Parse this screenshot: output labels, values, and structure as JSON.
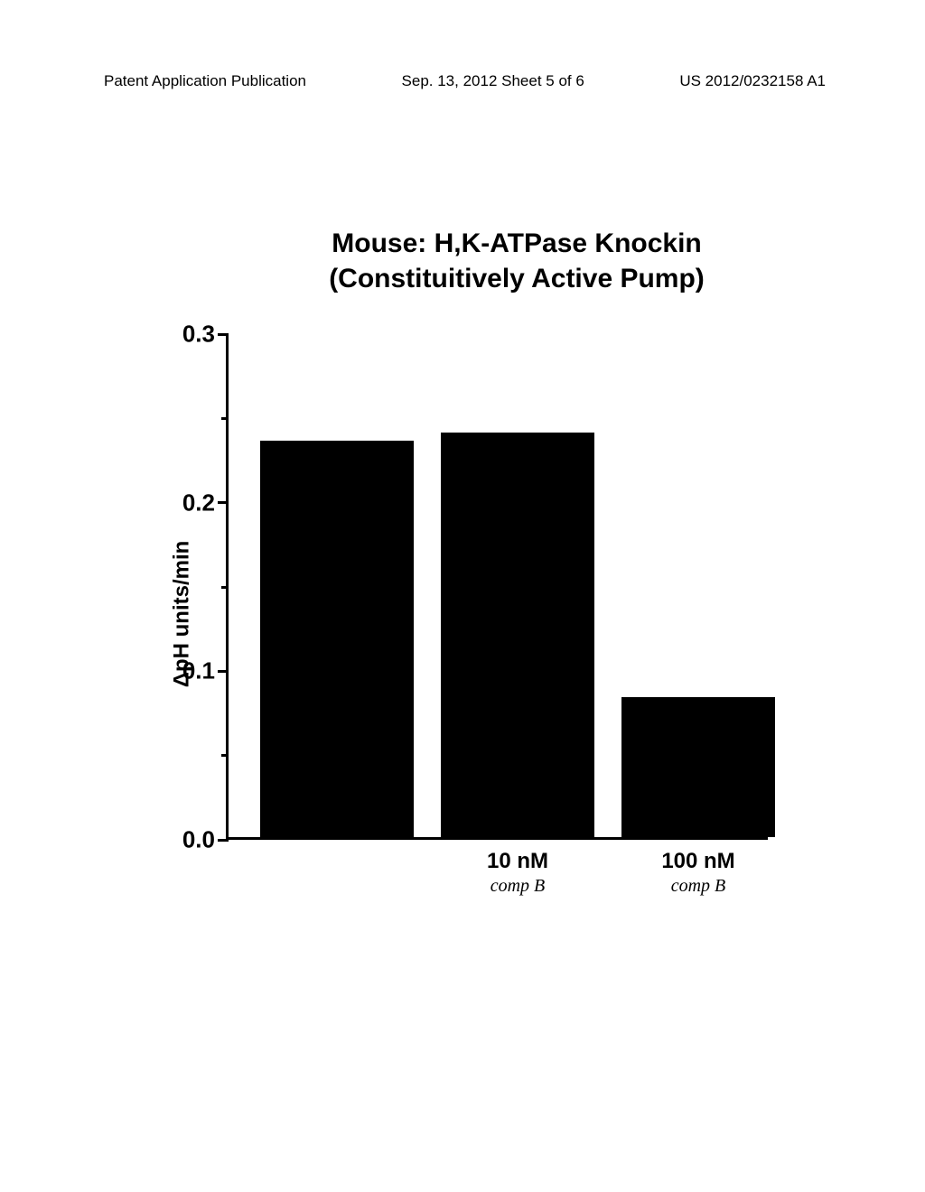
{
  "header": {
    "left": "Patent Application Publication",
    "center": "Sep. 13, 2012  Sheet 5 of 6",
    "right": "US 2012/0232158 A1"
  },
  "chart": {
    "type": "bar",
    "title_line1": "Mouse: H,K-ATPase Knockin",
    "title_line2": "(Constituitively Active Pump)",
    "title_fontsize": 30,
    "y_label": "ΔpH units/min",
    "y_label_fontsize": 24,
    "ylim": [
      0.0,
      0.3
    ],
    "ytick_step": 0.1,
    "y_tick_labels": [
      "0.0",
      "0.1",
      "0.2",
      "0.3"
    ],
    "bar_color": "#000000",
    "axis_color": "#000000",
    "background_color": "#ffffff",
    "bar_width": 0.85,
    "bars": [
      {
        "label_primary": "",
        "label_secondary": "",
        "value": 0.235
      },
      {
        "label_primary": "10 nM",
        "label_secondary": "comp B",
        "value": 0.24
      },
      {
        "label_primary": "100 nM",
        "label_secondary": "comp B",
        "value": 0.083
      }
    ]
  }
}
